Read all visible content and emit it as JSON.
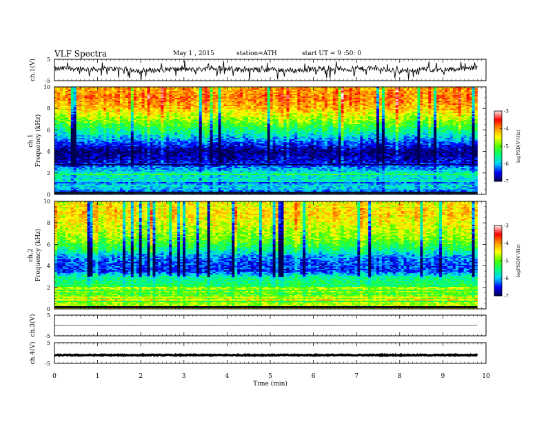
{
  "header": {
    "title": "VLF  Spectra",
    "date": "May 1 , 2015",
    "station": "station=ATH",
    "start": "start  UT  =   9  :50: 0"
  },
  "colors": {
    "spectrogram_scale": [
      "#000050",
      "#0000ff",
      "#00ffff",
      "#00ff00",
      "#ffff00",
      "#ff8000",
      "#ff0000",
      "#ffffff"
    ]
  },
  "chart_data": [
    {
      "type": "line",
      "id": "ch1-waveform",
      "ylabel": "ch.1(V)",
      "ylim": [
        -5,
        5
      ],
      "yticks": [
        "5",
        "-5"
      ],
      "description_values": {
        "baseline": 0.3,
        "noise_amplitude": 1.2
      },
      "x_range": [
        0,
        9.8
      ]
    },
    {
      "type": "heatmap",
      "id": "ch1-spectrogram",
      "ylabel_line1": "ch.1",
      "ylabel_line2": "Frequency  (kHz)",
      "ylim": [
        0,
        10
      ],
      "yticks": [
        "0",
        "2",
        "4",
        "6",
        "8",
        "10"
      ],
      "x_range": [
        0,
        9.8
      ],
      "colorbar": {
        "label": "logPSD(V²/Hz)",
        "range": [
          -7,
          -3
        ],
        "ticks": [
          "-3",
          "-4",
          "-5",
          "-6",
          "-7"
        ]
      },
      "band_profile_khz": [
        [
          0,
          -6.2
        ],
        [
          1,
          -5.8
        ],
        [
          2,
          -5.8
        ],
        [
          2.5,
          -6.2
        ],
        [
          3,
          -6.6
        ],
        [
          4,
          -6.9
        ],
        [
          5,
          -6.2
        ],
        [
          5.8,
          -5.6
        ],
        [
          7,
          -4.8
        ],
        [
          8,
          -4.2
        ],
        [
          9,
          -3.9
        ],
        [
          10,
          -4.1
        ]
      ]
    },
    {
      "type": "heatmap",
      "id": "ch2-spectrogram",
      "ylabel_line1": "ch.2",
      "ylabel_line2": "Frequency  (kHz)",
      "ylim": [
        0,
        10
      ],
      "yticks": [
        "0",
        "2",
        "4",
        "6",
        "8",
        "10"
      ],
      "x_range": [
        0,
        9.8
      ],
      "colorbar": {
        "label": "logPSD(V²/Hz)",
        "range": [
          -7,
          -3
        ],
        "ticks": [
          "-3",
          "-4",
          "-5",
          "-6",
          "-7"
        ]
      },
      "band_profile_khz": [
        [
          0,
          -4.6
        ],
        [
          1,
          -4.9
        ],
        [
          2,
          -5.3
        ],
        [
          3,
          -5.6
        ],
        [
          3.5,
          -6.4
        ],
        [
          4.5,
          -6.3
        ],
        [
          5,
          -6.0
        ],
        [
          5.5,
          -5.5
        ],
        [
          6.5,
          -4.9
        ],
        [
          8,
          -4.5
        ],
        [
          9,
          -4.3
        ],
        [
          10,
          -4.5
        ]
      ]
    },
    {
      "type": "line",
      "id": "ch3-waveform",
      "ylabel": "ch.3(V)",
      "ylim": [
        -5,
        5
      ],
      "yticks": [
        "5",
        "-5"
      ],
      "description_values": {
        "baseline": 0.0,
        "noise_amplitude": 0.08
      },
      "x_range": [
        0,
        9.8
      ]
    },
    {
      "type": "line",
      "id": "ch4-waveform",
      "ylabel": "ch.4(V)",
      "ylim": [
        -5,
        5
      ],
      "yticks": [
        "5",
        "-5"
      ],
      "description_values": {
        "baseline": -1.0,
        "noise_amplitude": 0.25
      },
      "x_range": [
        0,
        9.8
      ]
    }
  ],
  "xaxis": {
    "label": "Time  (min)",
    "ticks": [
      "0",
      "1",
      "2",
      "3",
      "4",
      "5",
      "6",
      "7",
      "8",
      "9",
      "10"
    ],
    "xlim": [
      0,
      10
    ]
  }
}
